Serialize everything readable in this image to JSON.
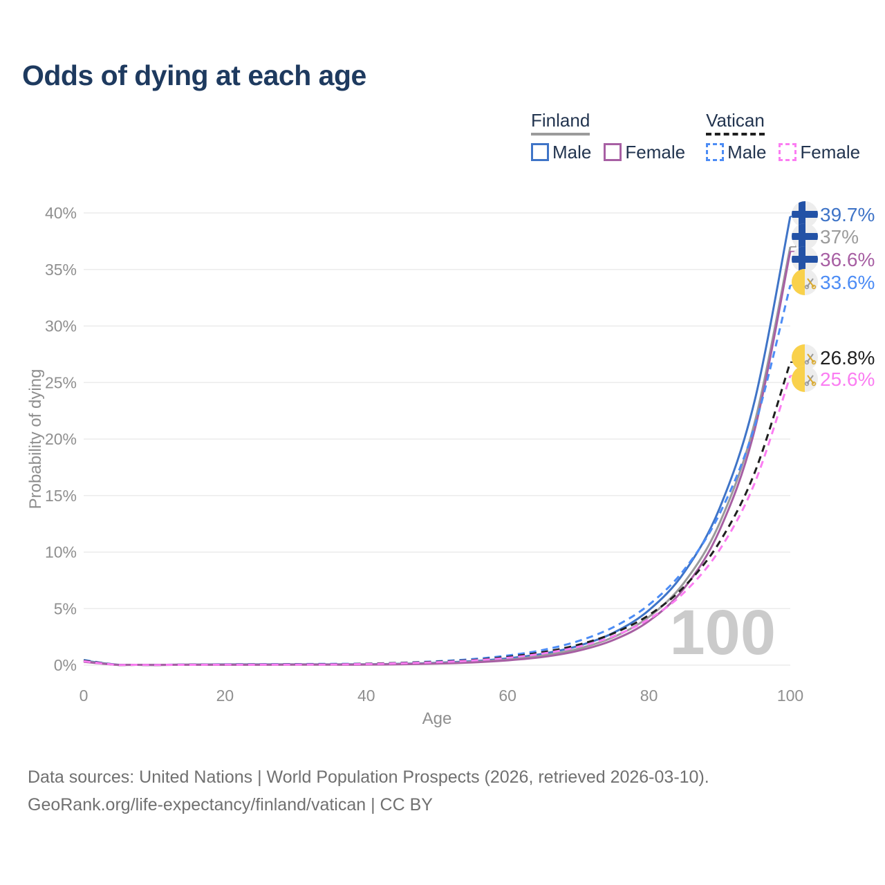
{
  "title": "Odds of dying at each age",
  "legend": {
    "groups": [
      {
        "name": "Finland",
        "line_style": "solid",
        "items": [
          {
            "label": "Male"
          },
          {
            "label": "Female"
          }
        ]
      },
      {
        "name": "Vatican",
        "line_style": "dashed",
        "items": [
          {
            "label": "Male"
          },
          {
            "label": "Female"
          }
        ]
      }
    ]
  },
  "footer": {
    "line1": "Data sources: United Nations | World Population Prospects (2026, retrieved 2026-03-10).",
    "line2": "GeoRank.org/life-expectancy/finland/vatican | CC BY"
  },
  "chart_data": {
    "type": "line",
    "xlabel": "Age",
    "ylabel": "Probability of dying",
    "xlim": [
      0,
      100
    ],
    "ylim": [
      0,
      40
    ],
    "grid": "horizontal",
    "xticks": [
      "0",
      "20",
      "40",
      "60",
      "80",
      "100"
    ],
    "yticks": [
      "0%",
      "5%",
      "10%",
      "15%",
      "20%",
      "25%",
      "30%",
      "35%",
      "40%"
    ],
    "hover_age_label": "100",
    "x": [
      0,
      5,
      10,
      15,
      20,
      25,
      30,
      35,
      40,
      45,
      50,
      55,
      60,
      65,
      70,
      75,
      80,
      85,
      90,
      95,
      100
    ],
    "series": [
      {
        "name": "Finland Male",
        "country": "Finland",
        "sex": "Male",
        "color": "#3f74c7",
        "dash": false,
        "flag": "finland-flag-icon",
        "end_label": "39.7%",
        "values": [
          0.4,
          0.03,
          0.02,
          0.05,
          0.07,
          0.07,
          0.07,
          0.07,
          0.08,
          0.12,
          0.21,
          0.35,
          0.6,
          1.01,
          1.7,
          2.87,
          4.86,
          8.22,
          13.89,
          23.49,
          39.7
        ]
      },
      {
        "name": "Finland Both sexes",
        "country": "Finland",
        "sex": "Both",
        "color": "#9b9b9b",
        "dash": false,
        "flag": "finland-flag-icon",
        "end_label": "37%",
        "values": [
          0.35,
          0.02,
          0.02,
          0.04,
          0.05,
          0.05,
          0.05,
          0.05,
          0.06,
          0.1,
          0.17,
          0.29,
          0.49,
          0.85,
          1.45,
          2.49,
          4.27,
          7.32,
          12.57,
          21.56,
          37
        ]
      },
      {
        "name": "Finland Female",
        "country": "Finland",
        "sex": "Female",
        "color": "#a75fa3",
        "dash": false,
        "flag": "finland-flag-icon",
        "end_label": "36.6%",
        "values": [
          0.3,
          0.02,
          0.01,
          0.03,
          0.03,
          0.03,
          0.04,
          0.04,
          0.04,
          0.08,
          0.14,
          0.24,
          0.42,
          0.72,
          1.27,
          2.23,
          3.9,
          6.82,
          11.94,
          20.91,
          36.6
        ]
      },
      {
        "name": "Vatican Male",
        "country": "Vatican",
        "sex": "Male",
        "color": "#4c8cf5",
        "dash": true,
        "flag": "vatican-flag-icon",
        "end_label": "33.6%",
        "values": [
          0.45,
          0.03,
          0.03,
          0.05,
          0.07,
          0.08,
          0.09,
          0.11,
          0.13,
          0.21,
          0.34,
          0.53,
          0.85,
          1.34,
          2.13,
          3.37,
          5.34,
          8.45,
          13.39,
          21.21,
          33.6
        ]
      },
      {
        "name": "Vatican Both sexes",
        "country": "Vatican",
        "sex": "Both",
        "color": "#1f1f1f",
        "dash": true,
        "flag": "vatican-flag-icon",
        "end_label": "26.8%",
        "values": [
          0.4,
          0.02,
          0.02,
          0.04,
          0.05,
          0.06,
          0.07,
          0.08,
          0.12,
          0.2,
          0.3,
          0.45,
          0.73,
          1.15,
          1.8,
          2.82,
          4.43,
          6.95,
          10.9,
          17.09,
          26.8
        ]
      },
      {
        "name": "Vatican Female",
        "country": "Vatican",
        "sex": "Female",
        "color": "#fb7df2",
        "dash": true,
        "flag": "vatican-flag-icon",
        "end_label": "25.6%",
        "values": [
          0.35,
          0.02,
          0.02,
          0.03,
          0.04,
          0.04,
          0.05,
          0.06,
          0.1,
          0.17,
          0.26,
          0.41,
          0.65,
          1.03,
          1.62,
          2.57,
          4.07,
          6.44,
          10.2,
          16.16,
          25.6
        ]
      }
    ],
    "icon_colors": {
      "flag_circle_bg": "#ededed",
      "finland_cross_blue": "#2352a6",
      "vatican_yellow": "#f9d14b",
      "vatican_key_gray": "#9a9a9a",
      "vatican_key_gold": "#d9a92e"
    }
  }
}
